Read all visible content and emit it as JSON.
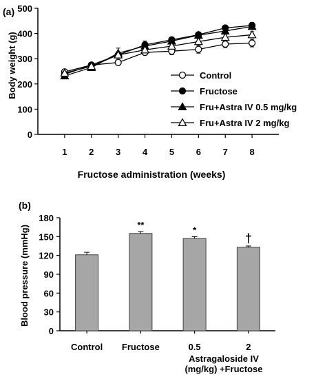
{
  "chart_data": [
    {
      "panel_label": "(a)",
      "type": "line",
      "xlabel": "Fructose administration (weeks)",
      "ylabel": "Body weight  (g)",
      "x": [
        1,
        2,
        3,
        4,
        5,
        6,
        7,
        8
      ],
      "xlim": [
        0,
        9
      ],
      "ylim": [
        0,
        500
      ],
      "yticks": [
        0,
        100,
        200,
        300,
        400,
        500
      ],
      "xticks": [
        1,
        2,
        3,
        4,
        5,
        6,
        7,
        8
      ],
      "grid": false,
      "legend_position": "bottom-right",
      "series": [
        {
          "name": "Control",
          "marker": "open-circle",
          "values": [
            248,
            275,
            285,
            325,
            330,
            337,
            358,
            362
          ],
          "errors": [
            6,
            6,
            8,
            10,
            14,
            15,
            14,
            15
          ]
        },
        {
          "name": "Fructose",
          "marker": "filled-circle",
          "values": [
            238,
            275,
            315,
            355,
            375,
            395,
            422,
            432
          ],
          "errors": [
            6,
            6,
            12,
            10,
            8,
            8,
            10,
            12
          ]
        },
        {
          "name": "Fru+Astra IV 0.5 mg/kg",
          "marker": "filled-triangle",
          "values": [
            232,
            265,
            322,
            350,
            370,
            393,
            410,
            428
          ],
          "errors": [
            6,
            8,
            20,
            20,
            10,
            10,
            12,
            12
          ]
        },
        {
          "name": "Fru+Astra IV 2 mg/kg",
          "marker": "open-triangle",
          "values": [
            243,
            270,
            315,
            335,
            350,
            368,
            385,
            395
          ],
          "errors": [
            6,
            6,
            10,
            12,
            12,
            12,
            12,
            12
          ]
        }
      ]
    },
    {
      "panel_label": "(b)",
      "type": "bar",
      "xlabel": "",
      "ylabel": "Blood pressure  (mmHg)",
      "categories": [
        "Control",
        "Fructose",
        "0.5",
        "2"
      ],
      "values": [
        121,
        155,
        147,
        133
      ],
      "errors": [
        4,
        3,
        3,
        2
      ],
      "annotations": [
        "",
        "**",
        "*",
        "†"
      ],
      "group_label": "Astragaloside IV",
      "group_label_2": "(mg/kg) +Fructose",
      "ylim": [
        0,
        180
      ],
      "yticks": [
        0,
        30,
        60,
        90,
        120,
        150,
        180
      ],
      "grid": false
    }
  ]
}
